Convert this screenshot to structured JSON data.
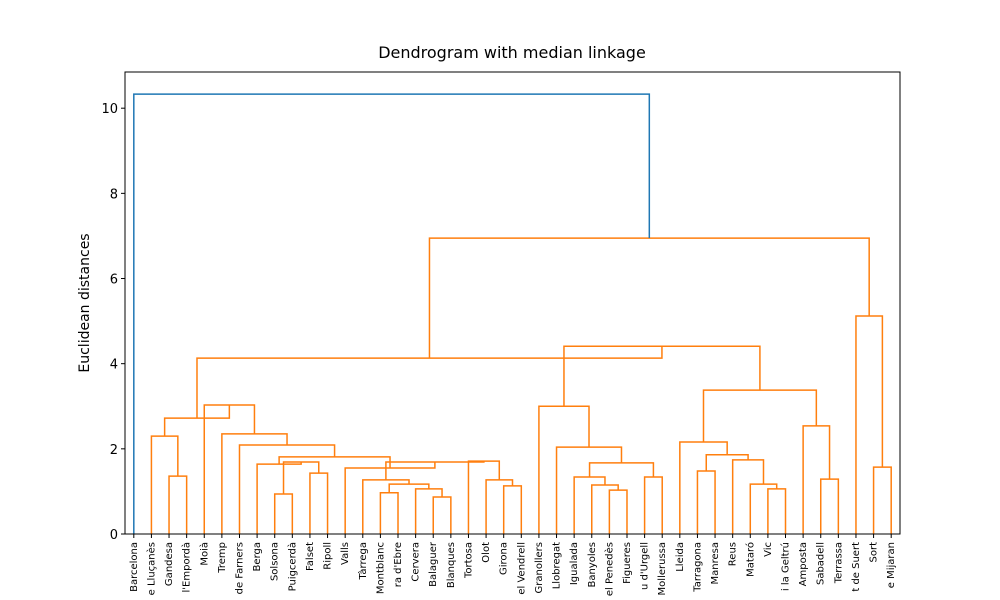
{
  "chart_data": {
    "type": "dendrogram",
    "title": "Dendrogram with median linkage",
    "y_label": "Euclidean distances",
    "labels": [
      "Barcelona",
      "e Lluçanès",
      "Gandesa",
      "l'Empordà",
      "Moià",
      "Tremp",
      "de Farners",
      "Berga",
      "Solsona",
      "Puigcerdà",
      "Falset",
      "Ripoll",
      "Valls",
      "Tàrrega",
      "Montblanc",
      "ra d'Ebre",
      "Cervera",
      "Balaguer",
      "Blanques",
      "Tortosa",
      "Olot",
      "Girona",
      "el Vendrell",
      "Granollers",
      "Llobregat",
      "Igualada",
      "Banyoles",
      "el Penedès",
      "Figueres",
      "u d'Urgell",
      "Mollerussa",
      "Lleida",
      "Tarragona",
      "Manresa",
      "Reus",
      "Mataró",
      "Vic",
      "i la Geltrú",
      "Amposta",
      "Sabadell",
      "Terrassa",
      "t de Suert",
      "Sort",
      "e Mijaran"
    ],
    "links": [
      {
        "left": 2,
        "right": 3,
        "height": 1.36,
        "color": "#ff7f0e"
      },
      {
        "left": 1,
        "right": 44,
        "height": 2.3,
        "color": "#ff7f0e"
      },
      {
        "left": 8,
        "right": 9,
        "height": 0.94,
        "color": "#ff7f0e"
      },
      {
        "left": 10,
        "right": 11,
        "height": 1.43,
        "color": "#ff7f0e"
      },
      {
        "left": 46,
        "right": 47,
        "height": 1.69,
        "color": "#ff7f0e"
      },
      {
        "left": 7,
        "right": 48,
        "height": 1.64,
        "color": "#ff7f0e"
      },
      {
        "left": 17,
        "right": 18,
        "height": 0.87,
        "color": "#ff7f0e"
      },
      {
        "left": 16,
        "right": 50,
        "height": 1.06,
        "color": "#ff7f0e"
      },
      {
        "left": 14,
        "right": 15,
        "height": 0.97,
        "color": "#ff7f0e"
      },
      {
        "left": 52,
        "right": 51,
        "height": 1.17,
        "color": "#ff7f0e"
      },
      {
        "left": 13,
        "right": 53,
        "height": 1.27,
        "color": "#ff7f0e"
      },
      {
        "left": 21,
        "right": 22,
        "height": 1.13,
        "color": "#ff7f0e"
      },
      {
        "left": 20,
        "right": 55,
        "height": 1.27,
        "color": "#ff7f0e"
      },
      {
        "left": 19,
        "right": 56,
        "height": 1.71,
        "color": "#ff7f0e"
      },
      {
        "left": 54,
        "right": 57,
        "height": 1.69,
        "color": "#ff7f0e"
      },
      {
        "left": 12,
        "right": 58,
        "height": 1.55,
        "color": "#ff7f0e"
      },
      {
        "left": 49,
        "right": 59,
        "height": 1.81,
        "color": "#ff7f0e"
      },
      {
        "left": 6,
        "right": 60,
        "height": 2.09,
        "color": "#ff7f0e"
      },
      {
        "left": 5,
        "right": 61,
        "height": 2.35,
        "color": "#ff7f0e"
      },
      {
        "left": 4,
        "right": 62,
        "height": 3.03,
        "color": "#ff7f0e"
      },
      {
        "left": 45,
        "right": 63,
        "height": 2.72,
        "color": "#ff7f0e"
      },
      {
        "left": 27,
        "right": 28,
        "height": 1.03,
        "color": "#ff7f0e"
      },
      {
        "left": 26,
        "right": 65,
        "height": 1.15,
        "color": "#ff7f0e"
      },
      {
        "left": 25,
        "right": 66,
        "height": 1.34,
        "color": "#ff7f0e"
      },
      {
        "left": 29,
        "right": 30,
        "height": 1.34,
        "color": "#ff7f0e"
      },
      {
        "left": 67,
        "right": 68,
        "height": 1.67,
        "color": "#ff7f0e"
      },
      {
        "left": 24,
        "right": 69,
        "height": 2.04,
        "color": "#ff7f0e"
      },
      {
        "left": 23,
        "right": 70,
        "height": 3.0,
        "color": "#ff7f0e"
      },
      {
        "left": 32,
        "right": 33,
        "height": 1.48,
        "color": "#ff7f0e"
      },
      {
        "left": 36,
        "right": 37,
        "height": 1.06,
        "color": "#ff7f0e"
      },
      {
        "left": 35,
        "right": 73,
        "height": 1.17,
        "color": "#ff7f0e"
      },
      {
        "left": 34,
        "right": 74,
        "height": 1.74,
        "color": "#ff7f0e"
      },
      {
        "left": 72,
        "right": 75,
        "height": 1.86,
        "color": "#ff7f0e"
      },
      {
        "left": 31,
        "right": 76,
        "height": 2.16,
        "color": "#ff7f0e"
      },
      {
        "left": 39,
        "right": 40,
        "height": 1.29,
        "color": "#ff7f0e"
      },
      {
        "left": 38,
        "right": 78,
        "height": 2.54,
        "color": "#ff7f0e"
      },
      {
        "left": 77,
        "right": 79,
        "height": 3.38,
        "color": "#ff7f0e"
      },
      {
        "left": 71,
        "right": 80,
        "height": 4.41,
        "color": "#ff7f0e"
      },
      {
        "left": 64,
        "right": 81,
        "height": 4.13,
        "color": "#ff7f0e"
      },
      {
        "left": 42,
        "right": 43,
        "height": 1.57,
        "color": "#ff7f0e"
      },
      {
        "left": 41,
        "right": 83,
        "height": 5.12,
        "color": "#ff7f0e"
      },
      {
        "left": 82,
        "right": 84,
        "height": 6.95,
        "color": "#ff7f0e"
      },
      {
        "left": 0,
        "right": 85,
        "height": 10.33,
        "color": "#1f77b4"
      }
    ],
    "ylim": [
      0,
      10.85
    ],
    "yticks": [
      0,
      2,
      4,
      6,
      8,
      10
    ]
  }
}
